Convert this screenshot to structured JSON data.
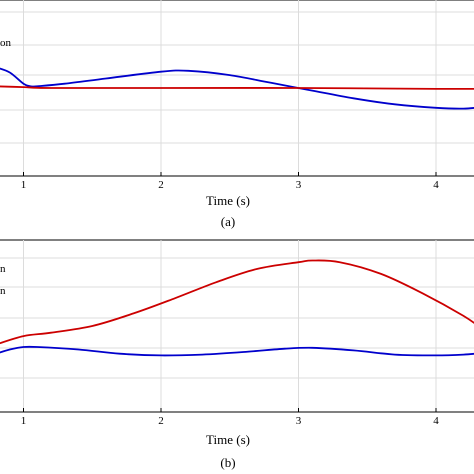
{
  "chart_data": [
    {
      "type": "line",
      "panel_label": "(a)",
      "xlabel": "Time (s)",
      "xticks": [
        1,
        2,
        3,
        4
      ],
      "xlim": [
        0.8,
        4.35
      ],
      "ylim": [
        -1.0,
        1.0
      ],
      "grid": true,
      "legend_entries": [
        "on"
      ],
      "series": [
        {
          "color": "#0000cc",
          "x": [
            0.8,
            0.9,
            1.0,
            1.05,
            1.1,
            1.3,
            1.6,
            2.0,
            2.2,
            2.5,
            2.8,
            3.1,
            3.4,
            3.7,
            4.0,
            4.2,
            4.35
          ],
          "y": [
            0.24,
            0.18,
            0.05,
            0.02,
            0.02,
            0.05,
            0.11,
            0.19,
            0.2,
            0.15,
            0.06,
            -0.03,
            -0.12,
            -0.19,
            -0.23,
            -0.24,
            -0.22
          ]
        },
        {
          "color": "#cc0000",
          "x": [
            0.8,
            1.0,
            1.2,
            2.0,
            3.0,
            4.0,
            4.35
          ],
          "y": [
            0.02,
            0.01,
            0.0,
            0.0,
            0.0,
            -0.01,
            -0.01
          ]
        }
      ]
    },
    {
      "type": "line",
      "panel_label": "(b)",
      "xlabel": "Time (s)",
      "xticks": [
        1,
        2,
        3,
        4
      ],
      "xlim": [
        0.8,
        4.35
      ],
      "ylim": [
        -1.0,
        1.0
      ],
      "grid": true,
      "legend_entries": [
        "n",
        "n"
      ],
      "series": [
        {
          "color": "#cc0000",
          "x": [
            0.8,
            1.0,
            1.2,
            1.5,
            1.8,
            2.1,
            2.4,
            2.7,
            3.0,
            3.1,
            3.3,
            3.6,
            3.9,
            4.2,
            4.35
          ],
          "y": [
            -0.22,
            -0.12,
            -0.08,
            0.0,
            0.15,
            0.33,
            0.52,
            0.68,
            0.76,
            0.78,
            0.76,
            0.62,
            0.39,
            0.12,
            -0.05
          ]
        },
        {
          "color": "#0000cc",
          "x": [
            0.8,
            0.9,
            1.0,
            1.1,
            1.4,
            1.7,
            2.0,
            2.3,
            2.6,
            2.9,
            3.1,
            3.4,
            3.7,
            4.0,
            4.2,
            4.35
          ],
          "y": [
            -0.33,
            -0.28,
            -0.25,
            -0.25,
            -0.28,
            -0.33,
            -0.35,
            -0.34,
            -0.31,
            -0.27,
            -0.26,
            -0.29,
            -0.34,
            -0.35,
            -0.34,
            -0.32
          ]
        }
      ]
    }
  ]
}
